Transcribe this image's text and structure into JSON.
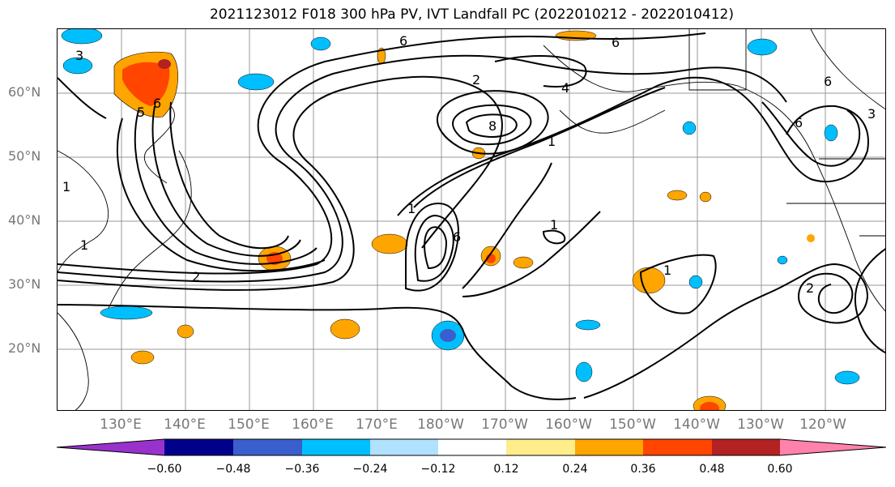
{
  "title": "2021123012 F018 300 hPa PV, IVT Landfall PC (2022010212 - 2022010412)",
  "lat_labels": [
    "60°N",
    "50°N",
    "40°N",
    "30°N",
    "20°N"
  ],
  "lon_labels": [
    "130°E",
    "140°E",
    "150°E",
    "160°E",
    "170°E",
    "180°W",
    "170°W",
    "160°W",
    "150°W",
    "140°W",
    "130°W",
    "120°W"
  ],
  "contour_labels": [
    "6",
    "6",
    "2",
    "4",
    "6",
    "8",
    "1",
    "1",
    "6",
    "1",
    "1",
    "2",
    "6",
    "6",
    "5",
    "1",
    "2",
    "1",
    "3",
    "3"
  ],
  "colorbar": {
    "ticks": [
      "−0.60",
      "−0.48",
      "−0.36",
      "−0.24",
      "−0.12",
      "0.12",
      "0.24",
      "0.36",
      "0.48",
      "0.60"
    ],
    "colors": [
      "#9932cc",
      "#00008b",
      "#3a5fcd",
      "#00bfff",
      "#b0e2ff",
      "#ffffff",
      "#ffec8b",
      "#ffa500",
      "#ff4500",
      "#b22222",
      "#ff82ab"
    ]
  }
}
